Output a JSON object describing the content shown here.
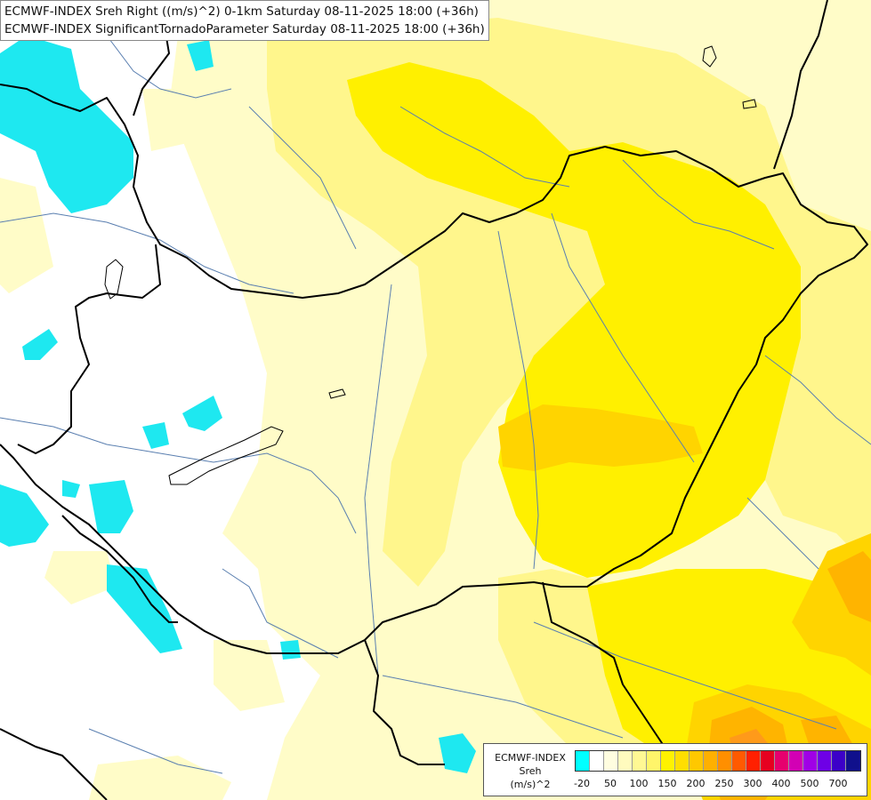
{
  "header": {
    "line1": "ECMWF-INDEX Sreh Right ((m/s)^2) 0-1km Saturday 08-11-2025 18:00 (+36h)",
    "line2": "ECMWF-INDEX SignificantTornadoParameter Saturday 08-11-2025 18:00 (+36h)"
  },
  "legend": {
    "title_line1": "ECMWF-INDEX",
    "title_line2": "Sreh",
    "title_line3": "(m/s)^2",
    "colors": [
      "#00ffff",
      "#ffffff",
      "#fffde0",
      "#fffbbe",
      "#fff894",
      "#fff56a",
      "#fff200",
      "#ffde00",
      "#ffc800",
      "#ffb000",
      "#ff8f00",
      "#ff5a00",
      "#ff2000",
      "#e60020",
      "#e6006e",
      "#d200b4",
      "#a000e6",
      "#6e00e6",
      "#3c00c8",
      "#10108c"
    ],
    "ticks": [
      "-20",
      "50",
      "100",
      "150",
      "200",
      "250",
      "300",
      "400",
      "500",
      "700"
    ]
  }
}
